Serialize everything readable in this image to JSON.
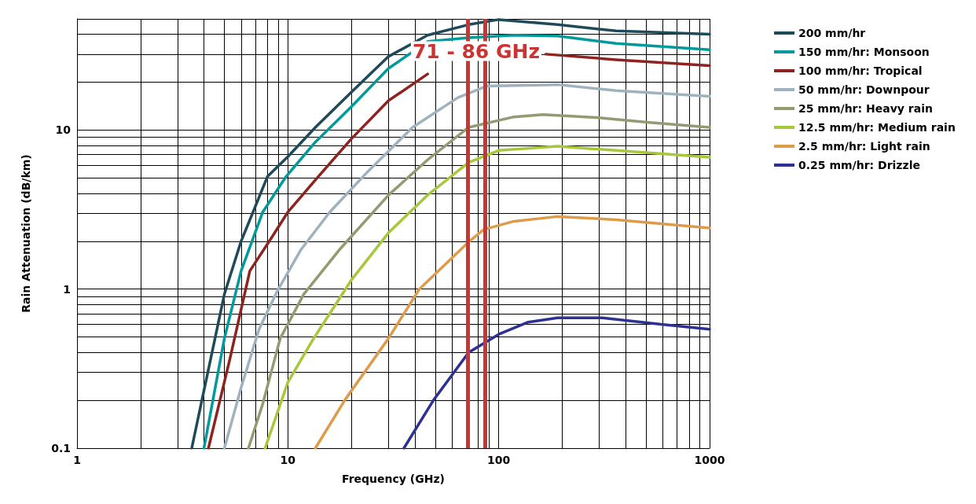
{
  "chart_data": {
    "type": "line",
    "xlabel": "Frequency (GHz)",
    "ylabel": "Rain Attenuation (dB/km)",
    "log": "xy",
    "grid": true,
    "legend": "right",
    "marker": "none",
    "line_style": "solid",
    "xlim": [
      1,
      1000
    ],
    "ylim": [
      0.1,
      50
    ],
    "xticks": [
      1,
      {
        "value": 2,
        "label": null
      },
      {
        "value": 3,
        "label": null
      },
      {
        "value": 4,
        "label": null
      },
      {
        "value": 5,
        "label": null
      },
      {
        "value": 6,
        "label": null
      },
      {
        "value": 7,
        "label": null
      },
      {
        "value": 8,
        "label": null
      },
      {
        "value": 9,
        "label": null
      },
      10,
      {
        "value": 20,
        "label": null
      },
      {
        "value": 30,
        "label": null
      },
      {
        "value": 40,
        "label": null
      },
      {
        "value": 50,
        "label": null
      },
      {
        "value": 60,
        "label": null
      },
      {
        "value": 70,
        "label": null
      },
      {
        "value": 80,
        "label": null
      },
      {
        "value": 90,
        "label": null
      },
      100,
      {
        "value": 200,
        "label": null
      },
      {
        "value": 300,
        "label": null
      },
      {
        "value": 400,
        "label": null
      },
      {
        "value": 500,
        "label": null
      },
      {
        "value": 600,
        "label": null
      },
      {
        "value": 700,
        "label": null
      },
      {
        "value": 800,
        "label": null
      },
      {
        "value": 900,
        "label": null
      },
      1000
    ],
    "yticks": [
      0.1,
      {
        "value": 0.2,
        "label": null
      },
      {
        "value": 0.3,
        "label": null
      },
      {
        "value": 0.4,
        "label": null
      },
      {
        "value": 0.5,
        "label": null
      },
      {
        "value": 0.6,
        "label": null
      },
      {
        "value": 0.7,
        "label": null
      },
      {
        "value": 0.8,
        "label": null
      },
      {
        "value": 0.9,
        "label": null
      },
      1,
      {
        "value": 2,
        "label": null
      },
      {
        "value": 3,
        "label": null
      },
      {
        "value": 4,
        "label": null
      },
      {
        "value": 5,
        "label": null
      },
      {
        "value": 6,
        "label": null
      },
      {
        "value": 7,
        "label": null
      },
      {
        "value": 8,
        "label": null
      },
      {
        "value": 9,
        "label": null
      },
      10,
      {
        "value": 20,
        "label": null
      },
      {
        "value": 30,
        "label": null
      },
      {
        "value": 40,
        "label": null
      },
      {
        "value": 50,
        "label": null
      }
    ],
    "ref_lines": [
      {
        "axis": "x",
        "value": 71,
        "label": "71 - 86 GHz",
        "color": "#cc3333"
      },
      {
        "axis": "x",
        "value": 86,
        "label": null,
        "color": "#cc3333"
      }
    ],
    "series": [
      {
        "name": "200 mm/hr",
        "color": "#1e4a5a",
        "x": [
          3.5,
          5,
          6,
          7,
          8,
          10,
          13.5,
          20,
          30,
          46,
          72,
          100,
          190,
          360,
          1000
        ],
        "values": [
          0.1,
          0.93,
          2,
          3.3,
          5.1,
          6.8,
          10.4,
          17.3,
          29,
          39.5,
          46,
          49.5,
          46,
          42,
          40
        ]
      },
      {
        "name": "150 mm/hr: Monsoon",
        "color": "#009a9c",
        "x": [
          4,
          5,
          6,
          7.6,
          9.8,
          13.5,
          20,
          30,
          46,
          72,
          118,
          190,
          360,
          1000
        ],
        "values": [
          0.1,
          0.49,
          1.3,
          3.05,
          5.1,
          8.4,
          14,
          24.4,
          36,
          38,
          39.5,
          39,
          35,
          32
        ]
      },
      {
        "name": "100 mm/hr: Tropical",
        "color": "#8e2420",
        "x": [
          4.2,
          5.3,
          6.6,
          8.3,
          10,
          13.5,
          20,
          30,
          46,
          75,
          167,
          360,
          1000
        ],
        "values": [
          0.1,
          0.36,
          1.3,
          2.07,
          3.05,
          4.85,
          8.8,
          15.3,
          22.5,
          null,
          30,
          27.7,
          25.4
        ]
      },
      {
        "name": "50 mm/hr: Downpour",
        "color": "#9fb2bf",
        "x": [
          5,
          6,
          7.3,
          8.9,
          11.5,
          15.8,
          24,
          39,
          64,
          88,
          190,
          360,
          1000
        ],
        "values": [
          0.1,
          0.24,
          0.56,
          0.97,
          1.76,
          3.05,
          5.5,
          10.4,
          16,
          18.9,
          19.3,
          17.7,
          16.3
        ]
      },
      {
        "name": "25 mm/hr: Heavy rain",
        "color": "#959a70",
        "x": [
          6.5,
          7.6,
          9.2,
          11.9,
          17.5,
          30,
          46,
          72,
          118,
          162,
          290,
          505,
          1000
        ],
        "values": [
          0.1,
          0.19,
          0.49,
          0.93,
          1.76,
          3.9,
          6.5,
          10.4,
          12.1,
          12.5,
          12,
          11.2,
          10.4
        ]
      },
      {
        "name": "12.5 mm/hr: Medium rain",
        "color": "#a6c83a",
        "x": [
          7.8,
          10,
          13,
          20,
          30,
          46,
          72,
          100,
          190,
          360,
          1000
        ],
        "values": [
          0.1,
          0.26,
          0.47,
          1.14,
          2.26,
          3.9,
          6.25,
          7.45,
          7.9,
          7.45,
          6.75
        ]
      },
      {
        "name": "2.5 mm/hr: Light rain",
        "color": "#dc9c4c",
        "x": [
          13.5,
          18.6,
          30,
          42,
          72,
          85,
          118,
          190,
          360,
          1000
        ],
        "values": [
          0.1,
          0.2,
          0.49,
          1,
          1.98,
          2.37,
          2.67,
          2.86,
          2.73,
          2.42
        ]
      },
      {
        "name": "0.25 mm/hr: Drizzle",
        "color": "#2e3192",
        "x": [
          35.5,
          49,
          72,
          100,
          138,
          190,
          310,
          590,
          1000
        ],
        "values": [
          0.1,
          0.2,
          0.4,
          0.52,
          0.62,
          0.66,
          0.66,
          0.6,
          0.56
        ]
      }
    ]
  }
}
